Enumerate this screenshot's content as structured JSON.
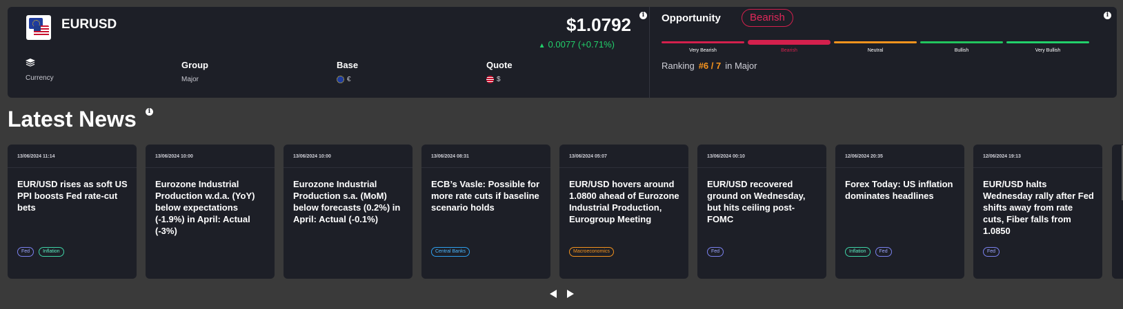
{
  "instrument": {
    "symbol": "EURUSD",
    "price": "$1.0792",
    "change": "0.0077 (+0.71%)",
    "info_icon": "i",
    "stats": {
      "currency_label": "Currency",
      "group_label": "Group",
      "group_value": "Major",
      "base_label": "Base",
      "base_value": "€",
      "quote_label": "Quote",
      "quote_value": "$"
    }
  },
  "opportunity": {
    "title": "Opportunity",
    "sentiment": "Bearish",
    "scale": [
      "Very Bearish",
      "Bearish",
      "Neutral",
      "Bullish",
      "Very Bullish"
    ],
    "scale_colors": [
      "#d4204d",
      "#d4204d",
      "#f7941d",
      "#22c55e",
      "#22d16b"
    ],
    "active_index": 1,
    "ranking_label": "Ranking",
    "ranking_value": "#6 / 7",
    "ranking_suffix": "in Major"
  },
  "news": {
    "title": "Latest News",
    "items": [
      {
        "date": "13/06/2024 11:14",
        "headline": "EUR/USD rises as soft US PPI boosts Fed rate-cut bets",
        "tags": [
          {
            "label": "Fed",
            "type": "fed"
          },
          {
            "label": "Inflation",
            "type": "inflation"
          }
        ]
      },
      {
        "date": "13/06/2024 10:00",
        "headline": "Eurozone Industrial Production w.d.a. (YoY) below expectations (-1.9%) in April: Actual (-3%)",
        "tags": []
      },
      {
        "date": "13/06/2024 10:00",
        "headline": "Eurozone Industrial Production s.a. (MoM) below forecasts (0.2%) in April: Actual (-0.1%)",
        "tags": []
      },
      {
        "date": "13/06/2024 08:31",
        "headline": "ECB’s Vasle: Possible for more rate cuts if baseline scenario holds",
        "tags": [
          {
            "label": "Central Banks",
            "type": "central"
          }
        ]
      },
      {
        "date": "13/06/2024 05:07",
        "headline": "EUR/USD hovers around 1.0800 ahead of Eurozone Industrial Production, Eurogroup Meeting",
        "tags": [
          {
            "label": "Macroeconomics",
            "type": "macro"
          }
        ]
      },
      {
        "date": "13/06/2024 00:10",
        "headline": "EUR/USD recovered ground on Wednesday, but hits ceiling post-FOMC",
        "tags": [
          {
            "label": "Fed",
            "type": "fed"
          }
        ]
      },
      {
        "date": "12/06/2024 20:35",
        "headline": "Forex Today: US inflation dominates headlines",
        "tags": [
          {
            "label": "Inflation",
            "type": "inflation"
          },
          {
            "label": "Fed",
            "type": "fed"
          }
        ]
      },
      {
        "date": "12/06/2024 19:13",
        "headline": "EUR/USD halts Wednesday rally after Fed shifts away from rate cuts, Fiber falls from 1.0850",
        "tags": [
          {
            "label": "Fed",
            "type": "fed"
          }
        ]
      }
    ]
  }
}
